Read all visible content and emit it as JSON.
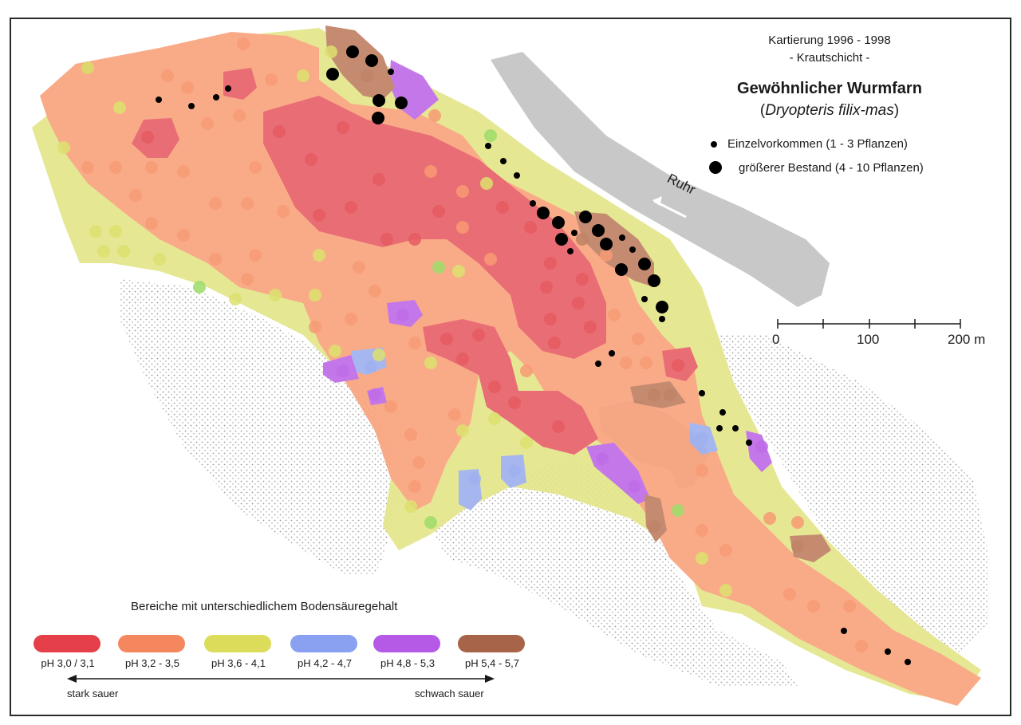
{
  "header": {
    "survey": "Kartierung 1996 - 1998",
    "layer": "- Krautschicht -",
    "title": "Gewöhnlicher Wurmfarn",
    "latin_open": "(",
    "latin": "Dryopteris filix-mas",
    "latin_close": ")"
  },
  "occurrence_legend": {
    "single": "Einzelvorkommen (1 - 3 Pflanzen)",
    "stand": "größerer Bestand (4 - 10 Pflanzen)"
  },
  "river": "Ruhr",
  "scale": {
    "labels": [
      "0",
      "100",
      "200 m"
    ]
  },
  "ph_legend": {
    "heading": "Bereiche mit unterschiedlichem Bodensäuregehalt",
    "classes": [
      {
        "label": "pH 3,0 / 3,1",
        "color": "#e5404a"
      },
      {
        "label": "pH 3,2 - 3,5",
        "color": "#f5875f"
      },
      {
        "label": "pH 3,6 - 4,1",
        "color": "#dcdc5a"
      },
      {
        "label": "pH 4,2 - 4,7",
        "color": "#8aa0f0"
      },
      {
        "label": "pH 4,8 - 5,3",
        "color": "#b45ae6"
      },
      {
        "label": "pH 5,4 - 5,7",
        "color": "#a86448"
      }
    ],
    "axis_left": "stark sauer",
    "axis_right": "schwach sauer"
  },
  "colors": {
    "ph_3_0": "#e5404a",
    "ph_3_2": "#f5875f",
    "ph_3_6": "#dcdc5a",
    "ph_4_2": "#8aa0f0",
    "ph_4_8": "#b45ae6",
    "ph_5_4": "#a86448",
    "river": "#c8c8c8",
    "hatched_terrain": "#bdbdbd",
    "fern_markers": "#000000"
  }
}
